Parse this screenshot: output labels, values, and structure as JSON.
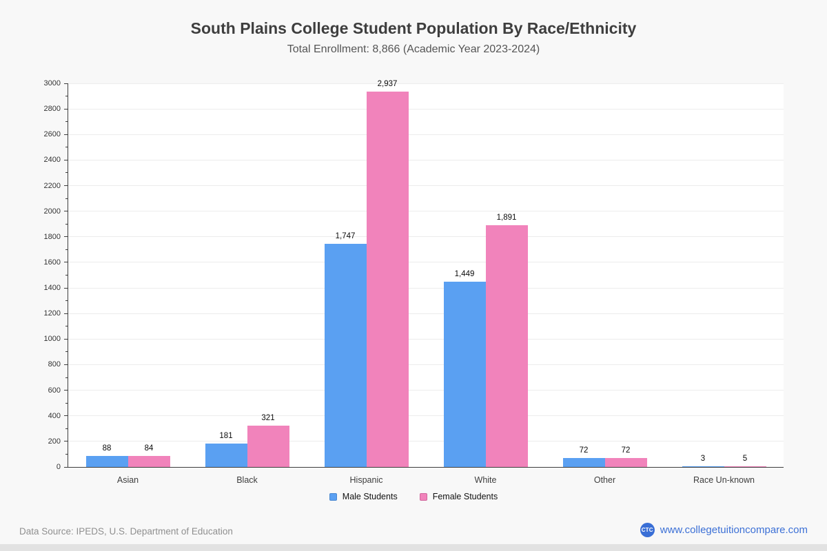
{
  "title": "South Plains College Student Population By Race/Ethnicity",
  "subtitle": "Total Enrollment: 8,866 (Academic Year 2023-2024)",
  "chart_data": {
    "type": "bar",
    "categories": [
      "Asian",
      "Black",
      "Hispanic",
      "White",
      "Other",
      "Race Un-known"
    ],
    "series": [
      {
        "name": "Male Students",
        "color": "#5aa0f2",
        "border_color": "#4a88d0",
        "values": [
          88,
          181,
          1747,
          1449,
          72,
          3
        ],
        "labels": [
          "88",
          "181",
          "1,747",
          "1,449",
          "72",
          "3"
        ]
      },
      {
        "name": "Female Students",
        "color": "#f183bb",
        "border_color": "#d0669c",
        "values": [
          84,
          321,
          2937,
          1891,
          72,
          5
        ],
        "labels": [
          "84",
          "321",
          "2,937",
          "1,891",
          "72",
          "5"
        ]
      }
    ],
    "ylim": [
      0,
      3000
    ],
    "ytick_step": 200,
    "yminor_step": 100,
    "grid": true,
    "legend_position": "bottom",
    "colors": {
      "grid": "#ececec",
      "axis": "#3c3c3c",
      "plot_bg": "#ffffff",
      "page_bg": "#f8f8f8"
    }
  },
  "footer": {
    "source": "Data Source: IPEDS, U.S. Department of Education",
    "logo": "CTC",
    "logo_color": "#3a6fd6",
    "website": "www.collegetuitioncompare.com",
    "link_color": "#3c70d6"
  }
}
